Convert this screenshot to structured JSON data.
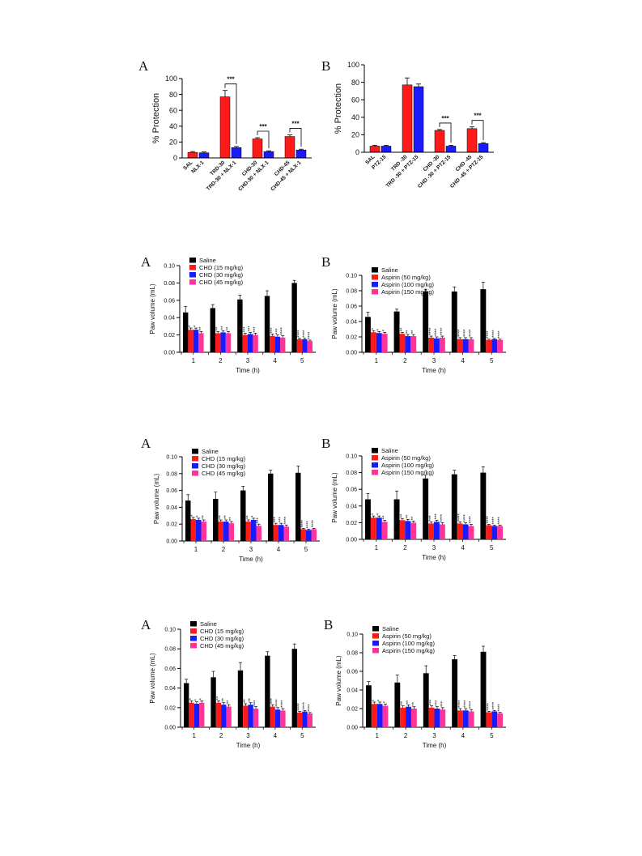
{
  "colors": {
    "saline": "#000000",
    "red": "#ff1a1a",
    "blue": "#1a1aff",
    "pink": "#ff3399"
  },
  "panels": [
    {
      "letter": "A"
    },
    {
      "letter": "B"
    },
    {
      "letter": "A"
    },
    {
      "letter": "B"
    },
    {
      "letter": "A"
    },
    {
      "letter": "B"
    },
    {
      "letter": "A"
    },
    {
      "letter": "B"
    }
  ],
  "chart_data": [
    {
      "type": "bar",
      "ylabel": "% Protection",
      "ylim": [
        0,
        100
      ],
      "yticks": [
        "0",
        "20",
        "40",
        "60",
        "80",
        "100"
      ],
      "groups": [
        {
          "bars": [
            {
              "label": "SAL",
              "value": 7,
              "err": 1,
              "color": "red"
            },
            {
              "label": "NLX-1",
              "value": 6.5,
              "err": 1,
              "color": "blue"
            }
          ]
        },
        {
          "bars": [
            {
              "label": "TRD-30",
              "value": 77,
              "err": 8,
              "color": "red"
            },
            {
              "label": "TRD-30 + NLX-1",
              "value": 13,
              "err": 1.5,
              "color": "blue"
            }
          ],
          "sig": "***"
        },
        {
          "bars": [
            {
              "label": "CHD-30",
              "value": 24,
              "err": 1.5,
              "color": "red"
            },
            {
              "label": "CHD-30 + NLX-1",
              "value": 8,
              "err": 1,
              "color": "blue"
            }
          ],
          "sig": "***"
        },
        {
          "bars": [
            {
              "label": "CHD-45",
              "value": 27,
              "err": 2,
              "color": "red"
            },
            {
              "label": "CHD-45 + NLX-1",
              "value": 10,
              "err": 1,
              "color": "blue"
            }
          ],
          "sig": "***"
        }
      ]
    },
    {
      "type": "bar",
      "ylabel": "% Protection",
      "ylim": [
        0,
        100
      ],
      "yticks": [
        "0",
        "20",
        "40",
        "60",
        "80",
        "100"
      ],
      "groups": [
        {
          "bars": [
            {
              "label": "SAL",
              "value": 7,
              "err": 1,
              "color": "red"
            },
            {
              "label": "PTZ-15",
              "value": 7,
              "err": 1,
              "color": "blue"
            }
          ]
        },
        {
          "bars": [
            {
              "label": "TRD -30",
              "value": 77,
              "err": 8,
              "color": "red"
            },
            {
              "label": "TRD -30 + PTZ-15",
              "value": 75,
              "err": 3,
              "color": "blue"
            }
          ]
        },
        {
          "bars": [
            {
              "label": "CHD -30",
              "value": 25,
              "err": 1,
              "color": "red"
            },
            {
              "label": "CHD -30 + PTZ-15",
              "value": 7,
              "err": 1,
              "color": "blue"
            }
          ],
          "sig": "***"
        },
        {
          "bars": [
            {
              "label": "CHD -45",
              "value": 27,
              "err": 2,
              "color": "red"
            },
            {
              "label": "CHD -45 + PTZ-15",
              "value": 10,
              "err": 1,
              "color": "blue"
            }
          ],
          "sig": "***"
        }
      ]
    },
    {
      "type": "bar",
      "ylabel": "Paw volume  (mL)",
      "xlabel": "Time (h)",
      "ylim": [
        0,
        0.1
      ],
      "yticks": [
        "0.00",
        "0.02",
        "0.04",
        "0.06",
        "0.08",
        "0.10"
      ],
      "categories": [
        "1",
        "2",
        "3",
        "4",
        "5"
      ],
      "series": [
        {
          "name": "Saline",
          "color": "saline",
          "values": [
            0.046,
            0.051,
            0.061,
            0.065,
            0.08
          ],
          "err": [
            0.007,
            0.004,
            0.005,
            0.006,
            0.003
          ],
          "stars": [
            "",
            "",
            "",
            "",
            ""
          ]
        },
        {
          "name": "CHD (15 mg/kg)",
          "color": "red",
          "values": [
            0.026,
            0.022,
            0.02,
            0.019,
            0.015
          ],
          "err": [
            0.002,
            0.002,
            0.002,
            0.002,
            0.001
          ],
          "stars": [
            "*",
            "**",
            "***",
            "***",
            "****"
          ]
        },
        {
          "name": "CHD (30 mg/kg)",
          "color": "blue",
          "values": [
            0.026,
            0.023,
            0.021,
            0.018,
            0.015
          ],
          "err": [
            0.002,
            0.002,
            0.002,
            0.002,
            0.001
          ],
          "stars": [
            "*",
            "**",
            "***",
            "***",
            "****"
          ]
        },
        {
          "name": "CHD (45 mg/kg)",
          "color": "pink",
          "values": [
            0.022,
            0.022,
            0.02,
            0.017,
            0.013
          ],
          "err": [
            0.002,
            0.002,
            0.002,
            0.002,
            0.001
          ],
          "stars": [
            "**",
            "**",
            "***",
            "****",
            "****"
          ]
        }
      ]
    },
    {
      "type": "bar",
      "ylabel": "Paw volume  (mL)",
      "xlabel": "Time (h)",
      "ylim": [
        0,
        0.1
      ],
      "yticks": [
        "0.00",
        "0.02",
        "0.04",
        "0.06",
        "0.08",
        "0.10"
      ],
      "categories": [
        "1",
        "2",
        "3",
        "4",
        "5"
      ],
      "series": [
        {
          "name": "Saline",
          "color": "saline",
          "values": [
            0.046,
            0.053,
            0.079,
            0.079,
            0.082
          ],
          "err": [
            0.006,
            0.003,
            0.003,
            0.006,
            0.009
          ],
          "stars": [
            "",
            "",
            "",
            "",
            ""
          ]
        },
        {
          "name": "Aspirin (50 mg/kg)",
          "color": "red",
          "values": [
            0.026,
            0.024,
            0.019,
            0.017,
            0.016
          ],
          "err": [
            0.002,
            0.002,
            0.002,
            0.002,
            0.001
          ],
          "stars": [
            "*",
            "**",
            "****",
            "****",
            "****"
          ]
        },
        {
          "name": "Aspirin (100 mg/kg)",
          "color": "blue",
          "values": [
            0.025,
            0.021,
            0.018,
            0.017,
            0.017
          ],
          "err": [
            0.002,
            0.002,
            0.002,
            0.002,
            0.001
          ],
          "stars": [
            "*",
            "**",
            "****",
            "****",
            "****"
          ]
        },
        {
          "name": "Aspirin (150 mg/kg)",
          "color": "pink",
          "values": [
            0.024,
            0.021,
            0.019,
            0.017,
            0.016
          ],
          "err": [
            0.002,
            0.002,
            0.002,
            0.002,
            0.001
          ],
          "stars": [
            "*",
            "**",
            "****",
            "****",
            "****"
          ]
        }
      ]
    },
    {
      "type": "bar",
      "ylabel": "Paw volume  (mL)",
      "xlabel": "Time (h)",
      "ylim": [
        0,
        0.1
      ],
      "yticks": [
        "0.00",
        "0.02",
        "0.04",
        "0.06",
        "0.08",
        "0.10"
      ],
      "categories": [
        "1",
        "2",
        "3",
        "4",
        "5"
      ],
      "series": [
        {
          "name": "Saline",
          "color": "saline",
          "values": [
            0.048,
            0.05,
            0.06,
            0.08,
            0.081
          ],
          "err": [
            0.007,
            0.008,
            0.005,
            0.004,
            0.008
          ],
          "stars": [
            "",
            "",
            "",
            "",
            ""
          ]
        },
        {
          "name": "CHD (15 mg/kg)",
          "color": "red",
          "values": [
            0.026,
            0.023,
            0.023,
            0.019,
            0.014
          ],
          "err": [
            0.002,
            0.002,
            0.002,
            0.002,
            0.001
          ],
          "stars": [
            "*",
            "**",
            "**",
            "***",
            "****"
          ]
        },
        {
          "name": "CHD (30 mg/kg)",
          "color": "blue",
          "values": [
            0.025,
            0.023,
            0.025,
            0.019,
            0.013
          ],
          "err": [
            0.002,
            0.002,
            0.002,
            0.002,
            0.001
          ],
          "stars": [
            "*",
            "**",
            "*",
            "***",
            "****"
          ]
        },
        {
          "name": "CHD (45 mg/kg)",
          "color": "pink",
          "values": [
            0.023,
            0.021,
            0.018,
            0.017,
            0.014
          ],
          "err": [
            0.002,
            0.002,
            0.002,
            0.002,
            0.001
          ],
          "stars": [
            "**",
            "**",
            "***",
            "****",
            "****"
          ]
        }
      ]
    },
    {
      "type": "bar",
      "ylabel": "Paw volume  (mL)",
      "xlabel": "Time (h)",
      "ylim": [
        0,
        0.1
      ],
      "yticks": [
        "0.00",
        "0.02",
        "0.04",
        "0.06",
        "0.08",
        "0.10"
      ],
      "categories": [
        "1",
        "2",
        "3",
        "4",
        "5"
      ],
      "series": [
        {
          "name": "Saline",
          "color": "saline",
          "values": [
            0.048,
            0.048,
            0.073,
            0.078,
            0.08
          ],
          "err": [
            0.007,
            0.01,
            0.004,
            0.005,
            0.007
          ],
          "stars": [
            "",
            "",
            "",
            "",
            ""
          ]
        },
        {
          "name": "Aspirin (50 mg/kg)",
          "color": "red",
          "values": [
            0.026,
            0.023,
            0.019,
            0.019,
            0.017
          ],
          "err": [
            0.002,
            0.002,
            0.002,
            0.002,
            0.001
          ],
          "stars": [
            "*",
            "**",
            "***",
            "****",
            "****"
          ]
        },
        {
          "name": "Aspirin (100 mg/kg)",
          "color": "blue",
          "values": [
            0.026,
            0.022,
            0.021,
            0.018,
            0.016
          ],
          "err": [
            0.002,
            0.002,
            0.002,
            0.002,
            0.001
          ],
          "stars": [
            "*",
            "**",
            "***",
            "****",
            "****"
          ]
        },
        {
          "name": "Aspirin (150 mg/kg)",
          "color": "pink",
          "values": [
            0.021,
            0.02,
            0.018,
            0.016,
            0.016
          ],
          "err": [
            0.002,
            0.002,
            0.002,
            0.002,
            0.001
          ],
          "stars": [
            "**",
            "**",
            "****",
            "****",
            "****"
          ]
        }
      ]
    },
    {
      "type": "bar",
      "ylabel": "Paw volume  (mL)",
      "xlabel": "Time (h)",
      "ylim": [
        0,
        0.1
      ],
      "yticks": [
        "0.00",
        "0.02",
        "0.04",
        "0.06",
        "0.08",
        "0.10"
      ],
      "categories": [
        "1",
        "2",
        "3",
        "4",
        "5"
      ],
      "series": [
        {
          "name": "Saline",
          "color": "saline",
          "values": [
            0.045,
            0.051,
            0.058,
            0.073,
            0.08
          ],
          "err": [
            0.004,
            0.006,
            0.008,
            0.004,
            0.005
          ],
          "stars": [
            "",
            "",
            "",
            "",
            ""
          ]
        },
        {
          "name": "CHD (15 mg/kg)",
          "color": "red",
          "values": [
            0.025,
            0.025,
            0.022,
            0.021,
            0.015
          ],
          "err": [
            0.002,
            0.002,
            0.002,
            0.002,
            0.001
          ],
          "stars": [
            "*",
            "**",
            "**",
            "***",
            "****"
          ]
        },
        {
          "name": "CHD (30 mg/kg)",
          "color": "blue",
          "values": [
            0.024,
            0.023,
            0.023,
            0.018,
            0.016
          ],
          "err": [
            0.002,
            0.002,
            0.002,
            0.002,
            0.001
          ],
          "stars": [
            "*",
            "**",
            "**",
            "****",
            "****"
          ]
        },
        {
          "name": "CHD (45 mg/kg)",
          "color": "pink",
          "values": [
            0.025,
            0.021,
            0.019,
            0.017,
            0.014
          ],
          "err": [
            0.002,
            0.002,
            0.002,
            0.002,
            0.001
          ],
          "stars": [
            "*",
            "**",
            "***",
            "****",
            "****"
          ]
        }
      ]
    },
    {
      "type": "bar",
      "ylabel": "Paw volume  (mL)",
      "xlabel": "Time (h)",
      "ylim": [
        0,
        0.1
      ],
      "yticks": [
        "0.00",
        "0.02",
        "0.04",
        "0.06",
        "0.08",
        "0.10"
      ],
      "categories": [
        "1",
        "2",
        "3",
        "4",
        "5"
      ],
      "series": [
        {
          "name": "Saline",
          "color": "saline",
          "values": [
            0.045,
            0.048,
            0.058,
            0.073,
            0.081
          ],
          "err": [
            0.004,
            0.008,
            0.008,
            0.004,
            0.006
          ],
          "stars": [
            "",
            "",
            "",
            "",
            ""
          ]
        },
        {
          "name": "Aspirin (50 mg/kg)",
          "color": "red",
          "values": [
            0.025,
            0.021,
            0.021,
            0.018,
            0.016
          ],
          "err": [
            0.002,
            0.002,
            0.002,
            0.002,
            0.001
          ],
          "stars": [
            "*",
            "**",
            "***",
            "****",
            "****"
          ]
        },
        {
          "name": "Aspirin (100 mg/kg)",
          "color": "blue",
          "values": [
            0.025,
            0.022,
            0.02,
            0.018,
            0.017
          ],
          "err": [
            0.002,
            0.002,
            0.002,
            0.002,
            0.001
          ],
          "stars": [
            "*",
            "**",
            "***",
            "****",
            "****"
          ]
        },
        {
          "name": "Aspirin (150 mg/kg)",
          "color": "pink",
          "values": [
            0.023,
            0.02,
            0.019,
            0.017,
            0.015
          ],
          "err": [
            0.002,
            0.002,
            0.002,
            0.002,
            0.001
          ],
          "stars": [
            "*",
            "**",
            "***",
            "****",
            "****"
          ]
        }
      ]
    }
  ]
}
